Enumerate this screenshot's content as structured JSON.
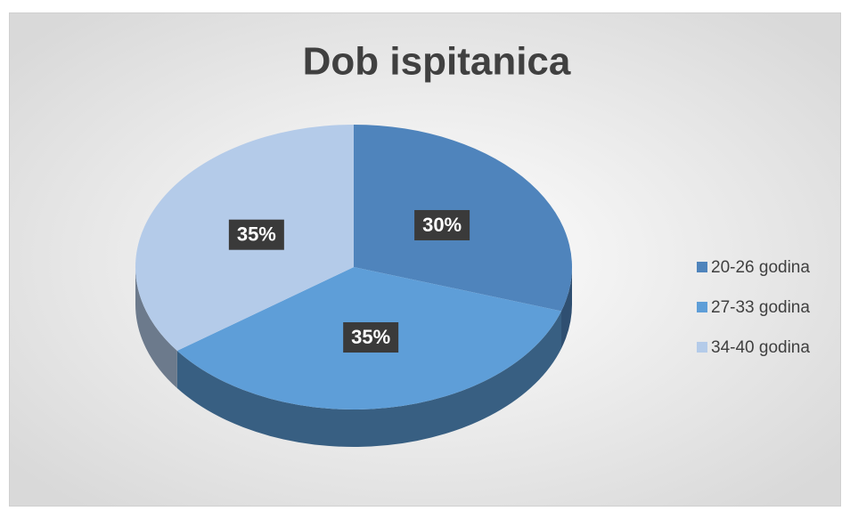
{
  "chart_data": {
    "type": "pie",
    "title": "Dob ispitanica",
    "categories": [
      "20-26 godina",
      "27-33 godina",
      "34-40 godina"
    ],
    "values": [
      30,
      35,
      35
    ],
    "value_labels": [
      "30%",
      "35%",
      "35%"
    ],
    "colors": [
      "#4f84bc",
      "#5e9ed8",
      "#b4cbe9"
    ],
    "legend": "right"
  }
}
